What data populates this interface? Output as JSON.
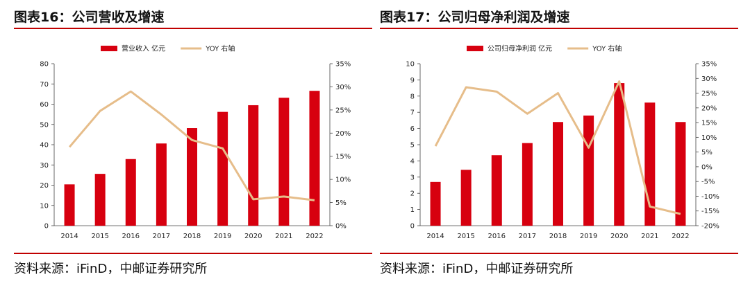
{
  "left": {
    "title": "图表16：公司营收及增速",
    "source": "资料来源：iFinD，中邮证券研究所"
  },
  "right": {
    "title": "图表17：公司归母净利润及增速",
    "source": "资料来源：iFinD，中邮证券研究所"
  },
  "colors": {
    "bar": "#d7000f",
    "line": "#e6bd8a",
    "rule": "#c00000"
  },
  "chart_data": [
    {
      "type": "bar+line",
      "title": "图表16：公司营收及增速",
      "categories": [
        "2014",
        "2015",
        "2016",
        "2017",
        "2018",
        "2019",
        "2020",
        "2021",
        "2022"
      ],
      "series": [
        {
          "name": "营业收入 亿元",
          "type": "bar",
          "axis": "left",
          "values": [
            20.4,
            25.6,
            32.9,
            40.6,
            48.2,
            56.2,
            59.5,
            63.2,
            66.6
          ]
        },
        {
          "name": "YOY 右轴",
          "type": "line",
          "axis": "right",
          "values": [
            17,
            24.8,
            29,
            24,
            18.5,
            16.7,
            5.7,
            6.3,
            5.5
          ]
        }
      ],
      "ylim_left": [
        0,
        80
      ],
      "ylim_right": [
        0,
        35
      ],
      "yticks_left": [
        "0",
        "10",
        "20",
        "30",
        "40",
        "50",
        "60",
        "70",
        "80"
      ],
      "yticks_right": [
        "0%",
        "5%",
        "10%",
        "15%",
        "20%",
        "25%",
        "30%",
        "35%"
      ]
    },
    {
      "type": "bar+line",
      "title": "图表17：公司归母净利润及增速",
      "categories": [
        "2014",
        "2015",
        "2016",
        "2017",
        "2018",
        "2019",
        "2020",
        "2021",
        "2022"
      ],
      "series": [
        {
          "name": "公司归母净利润 亿元",
          "type": "bar",
          "axis": "left",
          "values": [
            2.7,
            3.45,
            4.35,
            5.1,
            6.4,
            6.8,
            8.8,
            7.6,
            6.4
          ]
        },
        {
          "name": "YOY 右轴",
          "type": "line",
          "axis": "right",
          "values": [
            7,
            27,
            25.5,
            18,
            25,
            6.5,
            29,
            -13.5,
            -16
          ]
        }
      ],
      "ylim_left": [
        0,
        10
      ],
      "ylim_right": [
        -20,
        35
      ],
      "yticks_left": [
        "0",
        "1",
        "2",
        "3",
        "4",
        "5",
        "6",
        "7",
        "8",
        "9",
        "10"
      ],
      "yticks_right": [
        "-20%",
        "-15%",
        "-10%",
        "-5%",
        "0%",
        "5%",
        "10%",
        "15%",
        "20%",
        "25%",
        "30%",
        "35%"
      ]
    }
  ]
}
